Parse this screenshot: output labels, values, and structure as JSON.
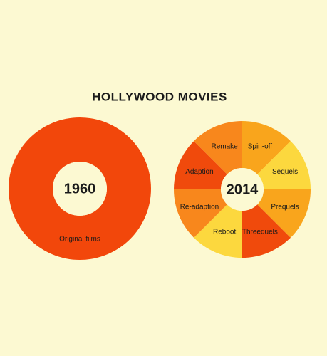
{
  "title": "HOLLYWOOD MOVIES",
  "chart_data": [
    {
      "type": "donut",
      "center_label": "1960",
      "categories": [
        "Original films"
      ],
      "values": [
        100
      ],
      "colors": [
        "#f2470b"
      ]
    },
    {
      "type": "donut",
      "center_label": "2014",
      "categories": [
        "Spin-off",
        "Sequels",
        "Prequels",
        "Threequels",
        "Reboot",
        "Re-adaption",
        "Adaption",
        "Remake"
      ],
      "values": [
        12.5,
        12.5,
        12.5,
        12.5,
        12.5,
        12.5,
        12.5,
        12.5
      ],
      "colors": [
        "#f9a51c",
        "#fcd83e",
        "#f9a51c",
        "#f04a0c",
        "#fcd83e",
        "#f8871c",
        "#f04a0c",
        "#f8871c"
      ]
    }
  ]
}
